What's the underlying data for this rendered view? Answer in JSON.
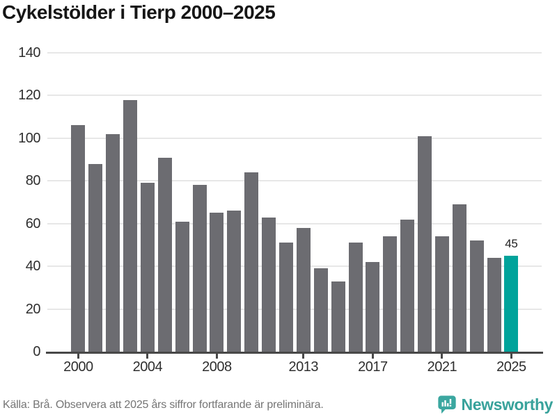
{
  "title": "Cykelstölder i Tierp 2000–2025",
  "chart_data": {
    "type": "bar",
    "title": "Cykelstölder i Tierp 2000–2025",
    "categories": [
      2000,
      2001,
      2002,
      2003,
      2004,
      2005,
      2006,
      2007,
      2008,
      2009,
      2010,
      2011,
      2012,
      2013,
      2014,
      2015,
      2016,
      2017,
      2018,
      2019,
      2020,
      2021,
      2022,
      2023,
      2024,
      2025
    ],
    "values": [
      106,
      88,
      102,
      118,
      79,
      91,
      61,
      78,
      65,
      66,
      84,
      63,
      51,
      58,
      39,
      33,
      51,
      42,
      54,
      62,
      101,
      54,
      69,
      52,
      44,
      45
    ],
    "xlabel": "",
    "ylabel": "",
    "ylim": [
      0,
      140
    ],
    "y_ticks": [
      0,
      20,
      40,
      60,
      80,
      100,
      120,
      140
    ],
    "x_tick_labels": [
      2000,
      2004,
      2008,
      2013,
      2017,
      2021,
      2025
    ],
    "grid": true,
    "legend_position": "none",
    "highlight_index": 25,
    "highlight_label": "45",
    "bar_color": "#6c6c71",
    "highlight_color": "#00a39b"
  },
  "footer": {
    "source": "Källa: Brå. Observera att 2025 års siffror fortfarande är preliminära.",
    "brand": "Newsworthy",
    "brand_color": "#38a29b",
    "logo_icon": "bar-chart-speech-bubble-icon"
  }
}
